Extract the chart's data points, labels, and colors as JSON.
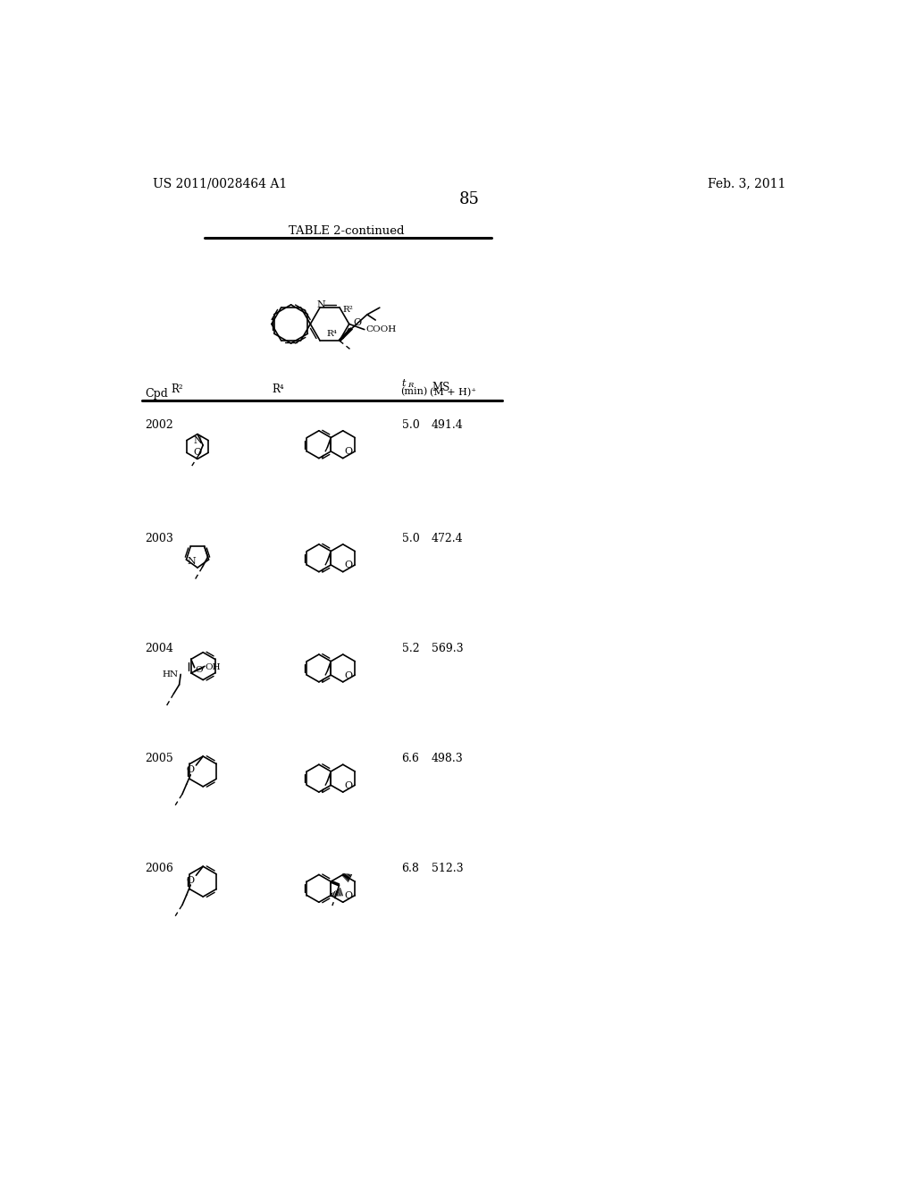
{
  "page_number": "85",
  "patent_number": "US 2011/0028464 A1",
  "patent_date": "Feb. 3, 2011",
  "table_title": "TABLE 2-continued",
  "rows": [
    {
      "cpd": "2002",
      "tr": "5.0",
      "ms": "491.4"
    },
    {
      "cpd": "2003",
      "tr": "5.0",
      "ms": "472.4"
    },
    {
      "cpd": "2004",
      "tr": "5.2",
      "ms": "569.3"
    },
    {
      "cpd": "2005",
      "tr": "6.6",
      "ms": "498.3"
    },
    {
      "cpd": "2006",
      "tr": "6.8",
      "ms": "512.3"
    }
  ],
  "bg_color": "#ffffff",
  "text_color": "#000000"
}
